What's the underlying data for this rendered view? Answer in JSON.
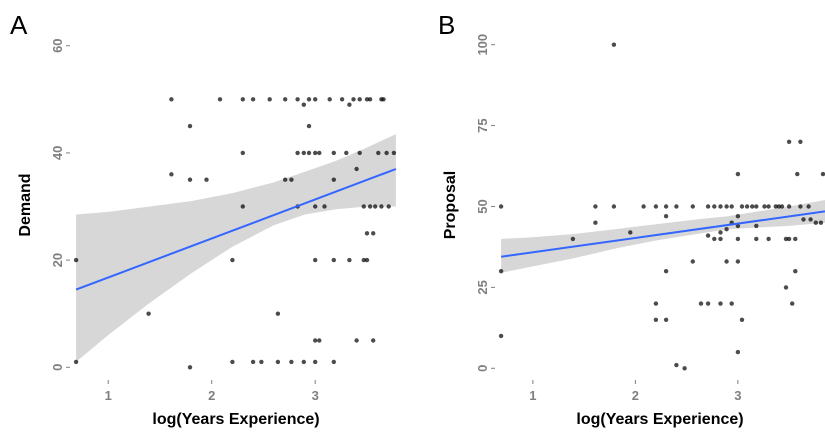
{
  "chart_data": [
    {
      "type": "scatter",
      "panel_label": "A",
      "xlabel": "log(Years Experience)",
      "ylabel": "Demand",
      "xlim": [
        0.65,
        3.8
      ],
      "ylim": [
        -2,
        62
      ],
      "xticks": [
        1,
        2,
        3
      ],
      "yticks": [
        0,
        20,
        40,
        60
      ],
      "fit": {
        "x": [
          0.69,
          3.78
        ],
        "y": [
          14.5,
          37
        ]
      },
      "band": {
        "x": [
          0.69,
          1.0,
          1.4,
          1.8,
          2.2,
          2.6,
          2.9,
          3.2,
          3.5,
          3.78
        ],
        "upper": [
          28.5,
          29,
          30,
          31,
          32.5,
          34.5,
          36.5,
          38.5,
          41,
          43.5
        ],
        "lower": [
          1,
          6,
          12,
          17.5,
          22.5,
          26.5,
          28.5,
          29.5,
          30,
          30
        ]
      },
      "points": [
        [
          0.69,
          1
        ],
        [
          0.69,
          20
        ],
        [
          1.39,
          10
        ],
        [
          1.61,
          50
        ],
        [
          1.61,
          36
        ],
        [
          1.79,
          45
        ],
        [
          1.79,
          35
        ],
        [
          1.79,
          0
        ],
        [
          1.95,
          35
        ],
        [
          2.08,
          50
        ],
        [
          2.2,
          20
        ],
        [
          2.2,
          1
        ],
        [
          2.3,
          50
        ],
        [
          2.3,
          40
        ],
        [
          2.3,
          30
        ],
        [
          2.4,
          50
        ],
        [
          2.4,
          1
        ],
        [
          2.48,
          1
        ],
        [
          2.56,
          50
        ],
        [
          2.64,
          10
        ],
        [
          2.64,
          1
        ],
        [
          2.71,
          50
        ],
        [
          2.71,
          35
        ],
        [
          2.77,
          35
        ],
        [
          2.77,
          1
        ],
        [
          2.83,
          50
        ],
        [
          2.83,
          40
        ],
        [
          2.83,
          30
        ],
        [
          2.89,
          49
        ],
        [
          2.89,
          40
        ],
        [
          2.89,
          1
        ],
        [
          2.94,
          50
        ],
        [
          2.94,
          45
        ],
        [
          2.94,
          40
        ],
        [
          3.0,
          50
        ],
        [
          3.0,
          40
        ],
        [
          3.0,
          30
        ],
        [
          3.0,
          20
        ],
        [
          3.0,
          5
        ],
        [
          3.0,
          1
        ],
        [
          3.04,
          40
        ],
        [
          3.04,
          5
        ],
        [
          3.09,
          30
        ],
        [
          3.14,
          50
        ],
        [
          3.18,
          40
        ],
        [
          3.18,
          35
        ],
        [
          3.18,
          20
        ],
        [
          3.18,
          1
        ],
        [
          3.26,
          50
        ],
        [
          3.3,
          40
        ],
        [
          3.33,
          49
        ],
        [
          3.33,
          20
        ],
        [
          3.37,
          50
        ],
        [
          3.4,
          37
        ],
        [
          3.4,
          5
        ],
        [
          3.43,
          50
        ],
        [
          3.43,
          40
        ],
        [
          3.47,
          30
        ],
        [
          3.47,
          20
        ],
        [
          3.5,
          50
        ],
        [
          3.5,
          25
        ],
        [
          3.5,
          20
        ],
        [
          3.53,
          50
        ],
        [
          3.53,
          30
        ],
        [
          3.56,
          25
        ],
        [
          3.56,
          5
        ],
        [
          3.58,
          30
        ],
        [
          3.61,
          40
        ],
        [
          3.64,
          50
        ],
        [
          3.64,
          30
        ],
        [
          3.66,
          50
        ],
        [
          3.69,
          40
        ],
        [
          3.71,
          30
        ],
        [
          3.76,
          40
        ]
      ]
    },
    {
      "type": "scatter",
      "panel_label": "B",
      "xlabel": "log(Years Experience)",
      "ylabel": "Proposal",
      "xlim": [
        0.65,
        3.85
      ],
      "ylim": [
        -3,
        103
      ],
      "xticks": [
        1,
        2,
        3
      ],
      "yticks": [
        0,
        25,
        50,
        75,
        100
      ],
      "fit": {
        "x": [
          0.69,
          3.85
        ],
        "y": [
          34.5,
          48.5
        ]
      },
      "band": {
        "x": [
          0.69,
          1.0,
          1.4,
          1.8,
          2.2,
          2.6,
          2.9,
          3.2,
          3.5,
          3.85
        ],
        "upper": [
          40,
          40.5,
          41.5,
          43,
          44.5,
          46,
          47,
          48.5,
          50,
          52
        ],
        "lower": [
          29.5,
          31.5,
          34,
          37,
          39.5,
          41.5,
          43,
          43.5,
          44,
          45
        ]
      },
      "points": [
        [
          0.69,
          10
        ],
        [
          0.69,
          30
        ],
        [
          0.69,
          50
        ],
        [
          1.39,
          40
        ],
        [
          1.61,
          50
        ],
        [
          1.61,
          45
        ],
        [
          1.79,
          100
        ],
        [
          1.79,
          50
        ],
        [
          1.95,
          42
        ],
        [
          2.08,
          50
        ],
        [
          2.2,
          50
        ],
        [
          2.2,
          20
        ],
        [
          2.2,
          15
        ],
        [
          2.3,
          50
        ],
        [
          2.3,
          47
        ],
        [
          2.3,
          30
        ],
        [
          2.3,
          15
        ],
        [
          2.4,
          50
        ],
        [
          2.4,
          1
        ],
        [
          2.48,
          0
        ],
        [
          2.56,
          50
        ],
        [
          2.56,
          33
        ],
        [
          2.64,
          20
        ],
        [
          2.71,
          50
        ],
        [
          2.71,
          41
        ],
        [
          2.71,
          20
        ],
        [
          2.77,
          50
        ],
        [
          2.77,
          40
        ],
        [
          2.83,
          50
        ],
        [
          2.83,
          42
        ],
        [
          2.83,
          40
        ],
        [
          2.83,
          20
        ],
        [
          2.89,
          50
        ],
        [
          2.89,
          43
        ],
        [
          2.89,
          33
        ],
        [
          2.94,
          50
        ],
        [
          2.94,
          45
        ],
        [
          2.94,
          20
        ],
        [
          3.0,
          60
        ],
        [
          3.0,
          47
        ],
        [
          3.0,
          44
        ],
        [
          3.0,
          40
        ],
        [
          3.0,
          33
        ],
        [
          3.0,
          5
        ],
        [
          3.04,
          50
        ],
        [
          3.04,
          15
        ],
        [
          3.09,
          50
        ],
        [
          3.14,
          50
        ],
        [
          3.18,
          50
        ],
        [
          3.18,
          44
        ],
        [
          3.18,
          40
        ],
        [
          3.26,
          50
        ],
        [
          3.3,
          50
        ],
        [
          3.3,
          40
        ],
        [
          3.37,
          50
        ],
        [
          3.4,
          50
        ],
        [
          3.43,
          50
        ],
        [
          3.47,
          40
        ],
        [
          3.47,
          25
        ],
        [
          3.5,
          70
        ],
        [
          3.5,
          50
        ],
        [
          3.5,
          40
        ],
        [
          3.53,
          20
        ],
        [
          3.56,
          40
        ],
        [
          3.56,
          30
        ],
        [
          3.58,
          60
        ],
        [
          3.61,
          70
        ],
        [
          3.61,
          50
        ],
        [
          3.64,
          46
        ],
        [
          3.69,
          50
        ],
        [
          3.71,
          46
        ],
        [
          3.76,
          45
        ],
        [
          3.81,
          45
        ],
        [
          3.83,
          60
        ]
      ]
    }
  ]
}
